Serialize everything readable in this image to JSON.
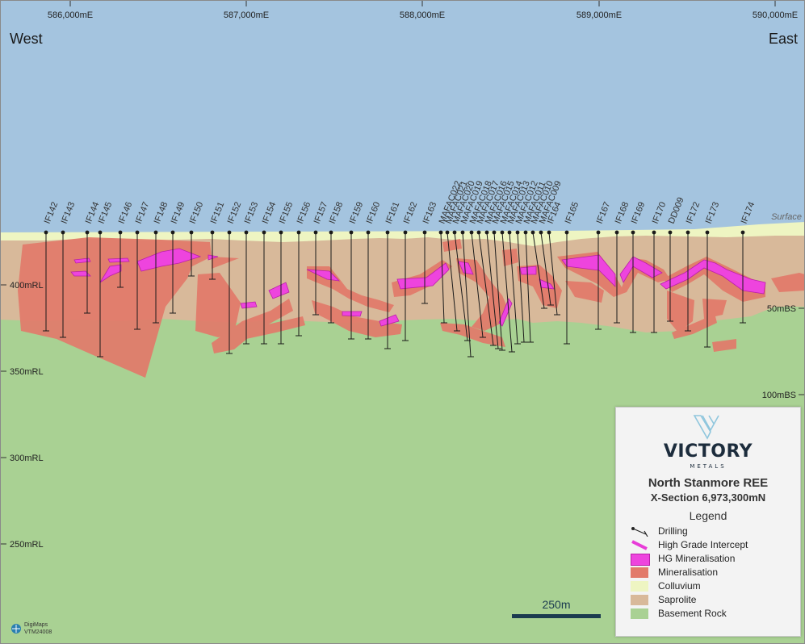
{
  "header": {
    "west": "West",
    "east": "East"
  },
  "eastings": [
    "586,000mE",
    "587,000mE",
    "588,000mE",
    "589,000mE",
    "590,000mE"
  ],
  "rl_labels": [
    "400mRL",
    "350mRL",
    "300mRL",
    "250mRL"
  ],
  "depth_labels": [
    "50mBS",
    "100mBS"
  ],
  "surface_label": "Surface",
  "drillholes": [
    "IF142",
    "IF143",
    "IF144",
    "IF145",
    "IF146",
    "IF147",
    "IF148",
    "IF149",
    "IF150",
    "IF151",
    "IF152",
    "IF153",
    "IF154",
    "IF155",
    "IF156",
    "IF157",
    "IF158",
    "IF159",
    "IF160",
    "IF161",
    "IF162",
    "IF163",
    "MAFAC022",
    "MAFAC021",
    "MAFAC020",
    "MAFAC019",
    "MAFAC018",
    "MAFAC017",
    "MAFAC016",
    "MAFAC015",
    "MAFAC014",
    "MAFAC013",
    "MAFAC012",
    "MAFAC011",
    "MAFAC010",
    "MAFAC009",
    "IF164",
    "IF165",
    "IF167",
    "IF168",
    "IF169",
    "IF170",
    "DD009",
    "IF172",
    "IF173",
    "IF174"
  ],
  "scale_bar": {
    "label": "250m"
  },
  "legend": {
    "logo_word": "VICTORY",
    "logo_sub": "METALS",
    "title": "North Stanmore REE",
    "subtitle": "X-Section 6,973,300mN",
    "heading": "Legend",
    "items": [
      {
        "label": "Drilling",
        "swatch": "drill"
      },
      {
        "label": "High Grade Intercept",
        "swatch": "hg-intercept",
        "color": "#e83cd8"
      },
      {
        "label": "HG Mineralisation",
        "color": "#ee44de"
      },
      {
        "label": "Mineralisation",
        "color": "#e27a6a"
      },
      {
        "label": "Colluvium",
        "color": "#eef5c2"
      },
      {
        "label": "Saprolite",
        "color": "#d8b99a"
      },
      {
        "label": "Basement Rock",
        "color": "#a9d193"
      }
    ]
  },
  "credit": {
    "line1": "DigiMaps",
    "line2": "VTM24008"
  },
  "colors": {
    "sky": "#a4c4df",
    "colluvium": "#eef5c2",
    "saprolite": "#d8b99a",
    "basement": "#a9d193",
    "mineralisation": "#e27a6a",
    "hg": "#ee44de"
  }
}
